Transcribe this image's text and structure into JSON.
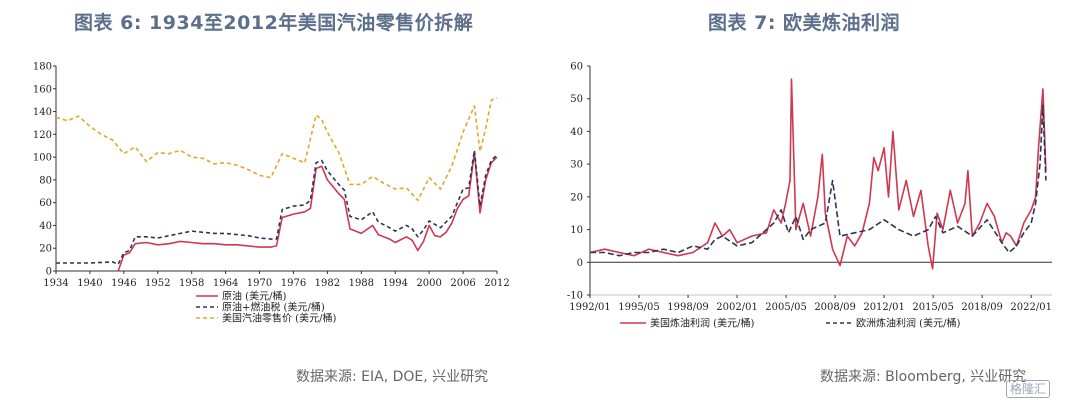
{
  "panels": [
    {
      "title": "图表 6:   1934至2012年美国汽油零售价拆解",
      "source": "数据来源:  EIA, DOE, 兴业研究"
    },
    {
      "title": "图表 7:   欧美炼油利润",
      "source": "数据来源:  Bloomberg, 兴业研究"
    }
  ],
  "watermark": "格隆汇",
  "colors": {
    "red": "#d0384e",
    "navy": "#2c3557",
    "orange": "#e3a72a",
    "axis": "#333333"
  },
  "chart_data": [
    {
      "type": "line",
      "title": "",
      "xlim": [
        1934,
        2012
      ],
      "ylim": [
        0,
        180
      ],
      "x_ticks": [
        "1934",
        "1940",
        "1946",
        "1952",
        "1958",
        "1964",
        "1970",
        "1976",
        "1982",
        "1988",
        "1994",
        "2000",
        "2006",
        "2012"
      ],
      "y_ticks": [
        "0",
        "20",
        "40",
        "60",
        "80",
        "100",
        "120",
        "140",
        "160",
        "180"
      ],
      "legend_position": "bottom-left",
      "series": [
        {
          "name": "原油 (美元/桶)",
          "style": "solid",
          "color": "#d0384e",
          "x": [
            1945,
            1946,
            1947,
            1948,
            1950,
            1952,
            1954,
            1956,
            1958,
            1960,
            1962,
            1964,
            1966,
            1968,
            1970,
            1972,
            1973,
            1974,
            1976,
            1978,
            1979,
            1980,
            1981,
            1982,
            1984,
            1985,
            1986,
            1988,
            1990,
            1991,
            1993,
            1994,
            1996,
            1997,
            1998,
            1999,
            2000,
            2001,
            2002,
            2003,
            2004,
            2005,
            2006,
            2007,
            2008,
            2009,
            2010,
            2011,
            2012
          ],
          "y": [
            0,
            14,
            16,
            24,
            25,
            23,
            24,
            26,
            25,
            24,
            24,
            23,
            23,
            22,
            21,
            21,
            22,
            47,
            50,
            52,
            55,
            90,
            92,
            80,
            68,
            63,
            37,
            33,
            40,
            32,
            28,
            25,
            30,
            27,
            18,
            26,
            40,
            31,
            30,
            34,
            42,
            55,
            63,
            66,
            104,
            51,
            80,
            95,
            100
          ]
        },
        {
          "name": "原油+燃油税 (美元/桶)",
          "style": "dashed",
          "color": "#2c3557",
          "x": [
            1934,
            1940,
            1944,
            1945,
            1946,
            1947,
            1948,
            1950,
            1952,
            1954,
            1956,
            1958,
            1960,
            1962,
            1964,
            1966,
            1968,
            1970,
            1972,
            1973,
            1974,
            1976,
            1978,
            1979,
            1980,
            1981,
            1982,
            1984,
            1985,
            1986,
            1988,
            1990,
            1991,
            1993,
            1994,
            1996,
            1997,
            1998,
            1999,
            2000,
            2001,
            2002,
            2003,
            2004,
            2005,
            2006,
            2007,
            2008,
            2009,
            2010,
            2011,
            2012
          ],
          "y": [
            7,
            7,
            8,
            6,
            16,
            18,
            30,
            30,
            29,
            31,
            33,
            35,
            34,
            33,
            33,
            32,
            31,
            29,
            28,
            28,
            54,
            57,
            58,
            62,
            95,
            97,
            88,
            76,
            71,
            48,
            45,
            52,
            43,
            38,
            35,
            40,
            37,
            30,
            36,
            44,
            41,
            38,
            43,
            48,
            60,
            72,
            73,
            106,
            57,
            84,
            97,
            102
          ]
        },
        {
          "name": "美国汽油零售价 (美元/桶)",
          "style": "dashed",
          "color": "#e3a72a",
          "x": [
            1934,
            1936,
            1938,
            1940,
            1942,
            1944,
            1946,
            1948,
            1950,
            1952,
            1954,
            1956,
            1958,
            1960,
            1962,
            1964,
            1966,
            1968,
            1970,
            1972,
            1974,
            1976,
            1978,
            1980,
            1981,
            1982,
            1984,
            1986,
            1988,
            1990,
            1992,
            1994,
            1996,
            1998,
            2000,
            2002,
            2004,
            2006,
            2008,
            2009,
            2010,
            2011,
            2012
          ],
          "y": [
            135,
            132,
            136,
            127,
            120,
            115,
            103,
            109,
            96,
            104,
            103,
            106,
            100,
            99,
            94,
            95,
            93,
            89,
            84,
            82,
            103,
            99,
            95,
            137,
            133,
            122,
            104,
            76,
            76,
            83,
            77,
            72,
            73,
            62,
            82,
            72,
            92,
            122,
            145,
            105,
            125,
            150,
            152
          ]
        }
      ]
    },
    {
      "type": "line",
      "title": "",
      "xlim": [
        "1992/01",
        "2023/06"
      ],
      "ylim": [
        -10,
        60
      ],
      "x_ticks": [
        "1992/01",
        "1995/05",
        "1998/09",
        "2002/01",
        "2005/05",
        "2008/09",
        "2012/01",
        "2015/05",
        "2018/09",
        "2022/01"
      ],
      "y_ticks": [
        "-10",
        "0",
        "10",
        "20",
        "30",
        "40",
        "50",
        "60"
      ],
      "legend_position": "bottom",
      "series": [
        {
          "name": "美国炼油利润 (美元/桶)",
          "style": "solid",
          "color": "#d0384e",
          "x": [
            1992.0,
            1993.0,
            1994.0,
            1995.0,
            1996.0,
            1997.0,
            1998.0,
            1999.0,
            2000.0,
            2000.5,
            2001.0,
            2001.5,
            2002.0,
            2003.0,
            2004.0,
            2004.5,
            2005.0,
            2005.3,
            2005.6,
            2005.7,
            2006.0,
            2006.5,
            2007.0,
            2007.5,
            2007.8,
            2008.0,
            2008.5,
            2009.0,
            2009.5,
            2010.0,
            2010.5,
            2011.0,
            2011.3,
            2011.6,
            2012.0,
            2012.3,
            2012.6,
            2013.0,
            2013.5,
            2014.0,
            2014.5,
            2015.0,
            2015.3,
            2015.6,
            2016.0,
            2016.5,
            2017.0,
            2017.5,
            2017.7,
            2018.0,
            2018.5,
            2019.0,
            2019.5,
            2020.0,
            2020.3,
            2020.6,
            2021.0,
            2021.5,
            2022.0,
            2022.3,
            2022.5,
            2022.8,
            2023.0
          ],
          "y": [
            3,
            4,
            3,
            2,
            4,
            3,
            2,
            3,
            6,
            12,
            8,
            10,
            6,
            8,
            9,
            16,
            12,
            18,
            25,
            56,
            10,
            18,
            8,
            20,
            33,
            15,
            4,
            -1,
            8,
            5,
            9,
            18,
            32,
            28,
            35,
            20,
            40,
            16,
            25,
            14,
            22,
            5,
            -2,
            15,
            10,
            22,
            12,
            18,
            28,
            8,
            12,
            18,
            14,
            6,
            9,
            8,
            5,
            12,
            16,
            20,
            35,
            53,
            28
          ]
        },
        {
          "name": "欧洲炼油利润 (美元/桶)",
          "style": "dashed",
          "color": "#2c3557",
          "x": [
            1992.0,
            1993.0,
            1994.0,
            1995.0,
            1996.0,
            1997.0,
            1998.0,
            1999.0,
            2000.0,
            2000.5,
            2001.0,
            2002.0,
            2003.0,
            2004.0,
            2004.5,
            2005.0,
            2005.5,
            2006.0,
            2006.5,
            2007.0,
            2008.0,
            2008.5,
            2009.0,
            2010.0,
            2011.0,
            2012.0,
            2013.0,
            2014.0,
            2015.0,
            2015.5,
            2016.0,
            2017.0,
            2018.0,
            2019.0,
            2020.0,
            2020.5,
            2021.0,
            2021.5,
            2022.0,
            2022.3,
            2022.6,
            2022.8,
            2023.0
          ],
          "y": [
            3,
            3,
            2,
            3,
            3,
            4,
            3,
            5,
            4,
            7,
            8,
            5,
            6,
            10,
            12,
            16,
            9,
            14,
            7,
            10,
            12,
            25,
            8,
            9,
            10,
            13,
            10,
            8,
            10,
            14,
            9,
            11,
            8,
            13,
            6,
            3,
            5,
            9,
            12,
            18,
            30,
            48,
            25
          ]
        }
      ]
    }
  ]
}
